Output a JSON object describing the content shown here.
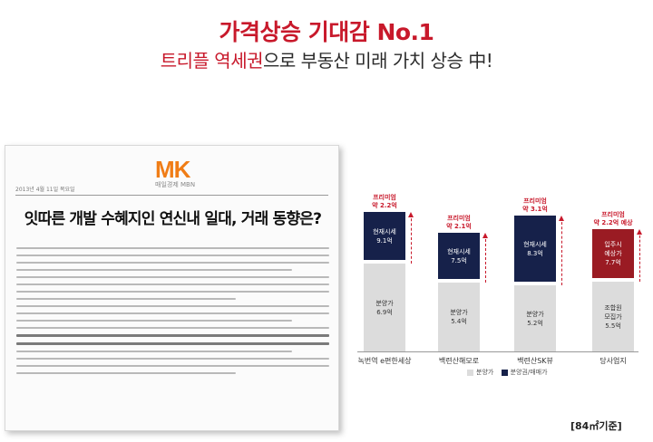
{
  "header": {
    "headline": "가격상승 기대감 No.1",
    "sub_highlight": "트리플 역세권",
    "sub_rest": "으로 부동산 미래 가치 상승 中!"
  },
  "article": {
    "logo": "MK",
    "logo_sub": "매일경제 MBN",
    "date": "2013년 4월 11일 목요일",
    "title": "잇따른 개발 수혜지인 연신내 일대, 거래 동향은?"
  },
  "chart_data": {
    "type": "bar",
    "categories": [
      "녹번역 e편한세상",
      "백련산해모로",
      "백련산SK뷰",
      "당사업지"
    ],
    "series": [
      {
        "name": "분양가",
        "values": [
          6.9,
          5.4,
          5.2,
          5.5
        ],
        "labels": [
          "분양가\n6.9억",
          "분양가\n5.4억",
          "분양가\n5.2억",
          "조합원\n모집가\n5.5억"
        ]
      },
      {
        "name": "분양권/매매가",
        "values": [
          9.1,
          7.5,
          8.3,
          7.7
        ],
        "labels": [
          "현재시세\n9.1억",
          "현재시세\n7.5억",
          "현재시세\n8.3억",
          "입주시\n예상가\n7.7억"
        ]
      }
    ],
    "annotations": [
      "프리미엄\n약 2.2억",
      "프리미엄\n약 2.1억",
      "프리미엄\n약 3.1억",
      "프리미엄\n약 2.2억 예상"
    ],
    "legend": [
      "분양가",
      "분양권/매매가"
    ],
    "legend_position": "bottom",
    "colors": {
      "sale": "#dcdcdc",
      "market": "#16214a",
      "project": "#9a1b23",
      "premium": "#c8192b"
    },
    "grid": false
  },
  "footnote": "[84㎡기준]"
}
